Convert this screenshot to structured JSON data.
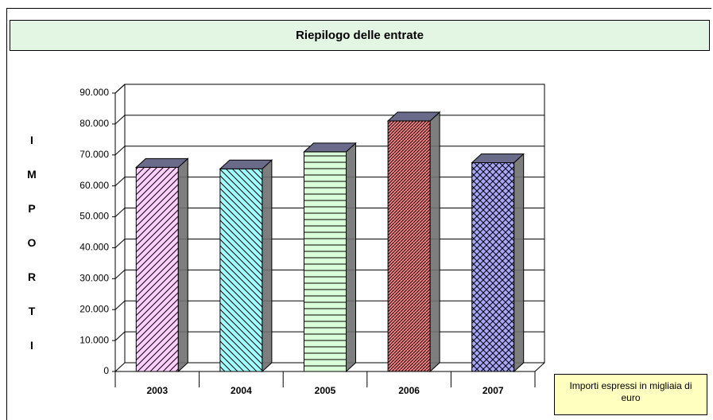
{
  "chart_data": {
    "type": "bar3d",
    "title": "Riepilogo delle entrate",
    "y_label": "IMPORTI",
    "note": "Importi espressi in migliaia di euro",
    "categories": [
      "2003",
      "2004",
      "2005",
      "2006",
      "2007"
    ],
    "values": [
      66000,
      65500,
      71000,
      81000,
      67500
    ],
    "colors": [
      "#ffd0ff",
      "#a0ffff",
      "#d8ffd8",
      "#ff8080",
      "#a8a8ff"
    ],
    "ylim": [
      0,
      90000
    ],
    "yticks": [
      0,
      {
        "value": 10000,
        "label": "10.000"
      },
      {
        "value": 20000,
        "label": "20.000"
      },
      {
        "value": 30000,
        "label": "30.000"
      },
      {
        "value": 40000,
        "label": "40.000"
      },
      {
        "value": 50000,
        "label": "50.000"
      },
      {
        "value": 60000,
        "label": "60.000"
      },
      {
        "value": 70000,
        "label": "70.000"
      },
      {
        "value": 80000,
        "label": "80.000"
      },
      {
        "value": 90000,
        "label": "90.000"
      }
    ],
    "grid": true
  }
}
